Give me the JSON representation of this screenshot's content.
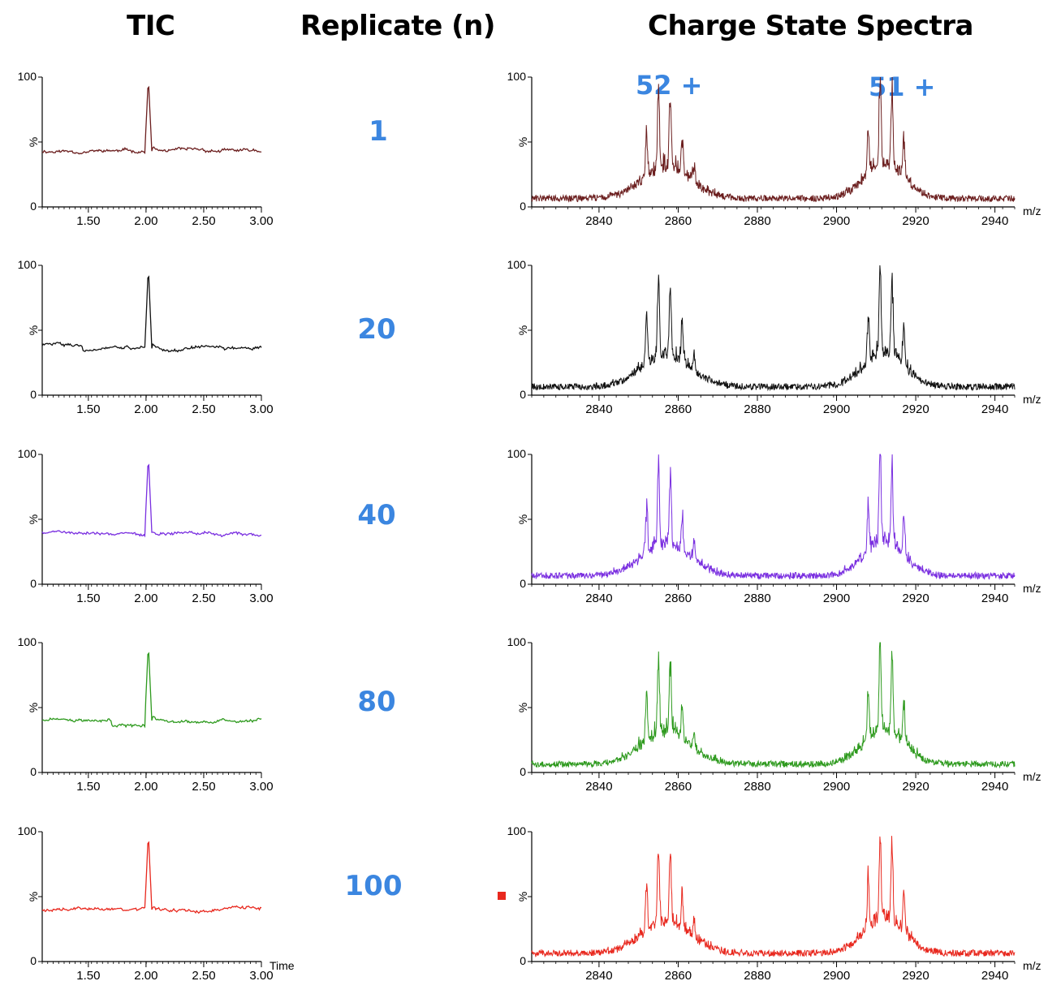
{
  "headers": {
    "tic": "TIC",
    "replicate": "Replicate (n)",
    "spectra": "Charge State Spectra"
  },
  "charge_states": {
    "left": "52 +",
    "right": "51 +"
  },
  "axis_text": {
    "y_max": "100",
    "y_min": "0",
    "y_unit": "%",
    "tic_x_title": "Time",
    "ms_x_title": "m/z"
  },
  "rows": [
    {
      "replicate": "1",
      "color": "#6b1e1e"
    },
    {
      "replicate": "20",
      "color": "#111111"
    },
    {
      "replicate": "40",
      "color": "#7a2fe0"
    },
    {
      "replicate": "80",
      "color": "#2e9a1e"
    },
    {
      "replicate": "100",
      "color": "#e8281e"
    }
  ],
  "colors": {
    "label_blue": "#3b86e0",
    "marker_red": "#e8281e"
  },
  "chart_data": [
    {
      "type": "line",
      "group": "TIC",
      "x_ticks": [
        "1.50",
        "2.00",
        "2.50",
        "3.00"
      ],
      "xlim": [
        1.1,
        3.0
      ],
      "ylim": [
        0,
        100
      ],
      "yticks": [
        "0",
        "%",
        "100"
      ],
      "peak_x": 2.02,
      "series": [
        {
          "replicate": "1",
          "color": "#6b1e1e",
          "baseline": 43,
          "peak": 100
        },
        {
          "replicate": "20",
          "color": "#111111",
          "baseline": 36,
          "peak": 100
        },
        {
          "replicate": "40",
          "color": "#7a2fe0",
          "baseline": 40,
          "peak": 100
        },
        {
          "replicate": "80",
          "color": "#2e9a1e",
          "baseline": 40,
          "peak": 100
        },
        {
          "replicate": "100",
          "color": "#e8281e",
          "baseline": 40,
          "peak": 100
        }
      ]
    },
    {
      "type": "line",
      "group": "Charge State Spectra",
      "x_ticks": [
        "2840",
        "2860",
        "2880",
        "2900",
        "2920",
        "2940"
      ],
      "xlim": [
        2823,
        2945
      ],
      "ylim": [
        0,
        100
      ],
      "yticks": [
        "0",
        "%",
        "100"
      ],
      "series": [
        {
          "replicate": "1",
          "color": "#6b1e1e"
        },
        {
          "replicate": "20",
          "color": "#111111"
        },
        {
          "replicate": "40",
          "color": "#7a2fe0"
        },
        {
          "replicate": "80",
          "color": "#2e9a1e"
        },
        {
          "replicate": "100",
          "color": "#e8281e"
        }
      ]
    }
  ]
}
